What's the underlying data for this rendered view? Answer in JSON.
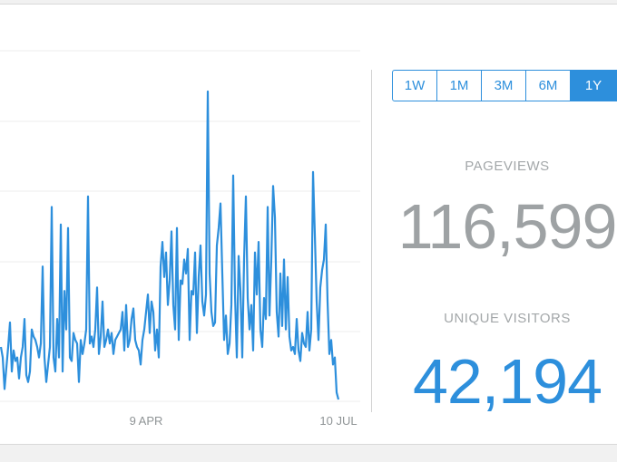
{
  "range_buttons": [
    {
      "label": "1W",
      "active": false
    },
    {
      "label": "1M",
      "active": false
    },
    {
      "label": "3M",
      "active": false
    },
    {
      "label": "6M",
      "active": false
    },
    {
      "label": "1Y",
      "active": true
    }
  ],
  "stats": {
    "pageviews_label": "PAGEVIEWS",
    "pageviews_value": "116,599",
    "unique_visitors_label": "UNIQUE VISITORS",
    "unique_visitors_value": "42,194"
  },
  "colors": {
    "accent": "#2d8fdc",
    "muted_text": "#9ea2a4",
    "grid": "#ececec"
  },
  "chart_data": {
    "type": "line",
    "x_tick_labels": [
      "9 APR",
      "10 JUL"
    ],
    "grid": true,
    "series": [
      {
        "values": [
          15,
          12,
          3,
          9,
          15,
          22,
          8,
          14,
          11,
          12,
          6,
          12,
          15,
          23,
          7,
          5,
          8,
          20,
          18,
          17,
          15,
          12,
          16,
          38,
          12,
          5,
          10,
          15,
          55,
          12,
          8,
          23,
          12,
          50,
          8,
          31,
          20,
          49,
          12,
          11,
          19,
          17,
          16,
          5,
          17,
          13,
          16,
          20,
          58,
          16,
          18,
          15,
          20,
          32,
          13,
          18,
          28,
          15,
          17,
          20,
          16,
          19,
          13,
          17,
          18,
          19,
          20,
          25,
          14,
          27,
          15,
          17,
          23,
          26,
          17,
          15,
          14,
          10,
          17,
          20,
          25,
          30,
          19,
          28,
          25,
          14,
          20,
          12,
          38,
          45,
          35,
          42,
          27,
          34,
          48,
          27,
          20,
          49,
          17,
          34,
          33,
          40,
          36,
          43,
          17,
          31,
          30,
          42,
          19,
          35,
          44,
          28,
          24,
          30,
          88,
          36,
          25,
          21,
          22,
          44,
          49,
          56,
          36,
          17,
          24,
          13,
          16,
          27,
          64,
          30,
          12,
          41,
          31,
          12,
          40,
          58,
          29,
          20,
          27,
          14,
          42,
          30,
          45,
          20,
          15,
          29,
          23,
          55,
          24,
          40,
          61,
          52,
          25,
          18,
          36,
          21,
          40,
          20,
          35,
          18,
          14,
          15,
          13,
          23,
          14,
          11,
          19,
          16,
          15,
          25,
          14,
          20,
          65,
          47,
          28,
          17,
          32,
          37,
          40,
          50,
          28,
          13,
          17,
          10,
          12,
          2,
          0
        ]
      }
    ]
  }
}
